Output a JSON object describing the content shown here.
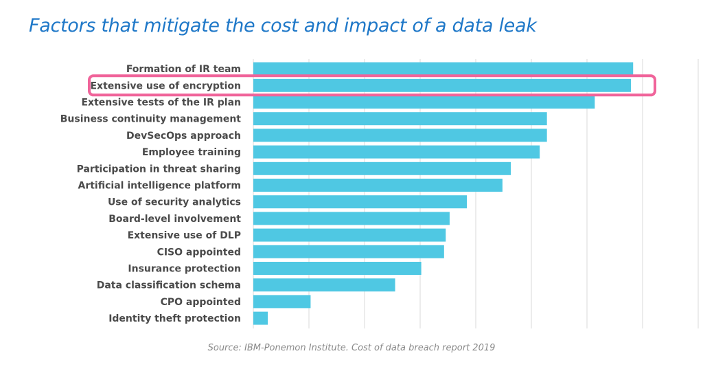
{
  "title": "Factors that mitigate the cost and impact of a data leak",
  "source": "Source: IBM-Ponemon Institute. Cost of data breach report 2019",
  "highlight_category": "Extensive use of encryption",
  "colors": {
    "bar": "#4fc8e3",
    "grid": "#d9d9d9",
    "highlight": "#f0649a",
    "title": "#1f78c8"
  },
  "chart_data": {
    "type": "bar",
    "orientation": "horizontal",
    "categories": [
      "Formation of IR team",
      "Extensive use of encryption",
      "Extensive tests of the IR plan",
      "Business continuity management",
      "DevSecOps approach",
      "Employee training",
      "Participation in threat sharing",
      "Artificial intelligence platform",
      "Use of security analytics",
      "Board-level involvement",
      "Extensive use of DLP",
      "CISO appointed",
      "Insurance protection",
      "Data classification schema",
      "CPO appointed",
      "Identity theft protection"
    ],
    "values": [
      6.83,
      6.79,
      6.14,
      5.28,
      5.28,
      5.15,
      4.63,
      4.48,
      3.84,
      3.53,
      3.46,
      3.43,
      3.02,
      2.55,
      1.03,
      0.26
    ],
    "xlim": [
      0,
      7
    ],
    "grid": true,
    "title": "Factors that mitigate the cost and impact of a data leak",
    "xlabel": "",
    "ylabel": ""
  }
}
